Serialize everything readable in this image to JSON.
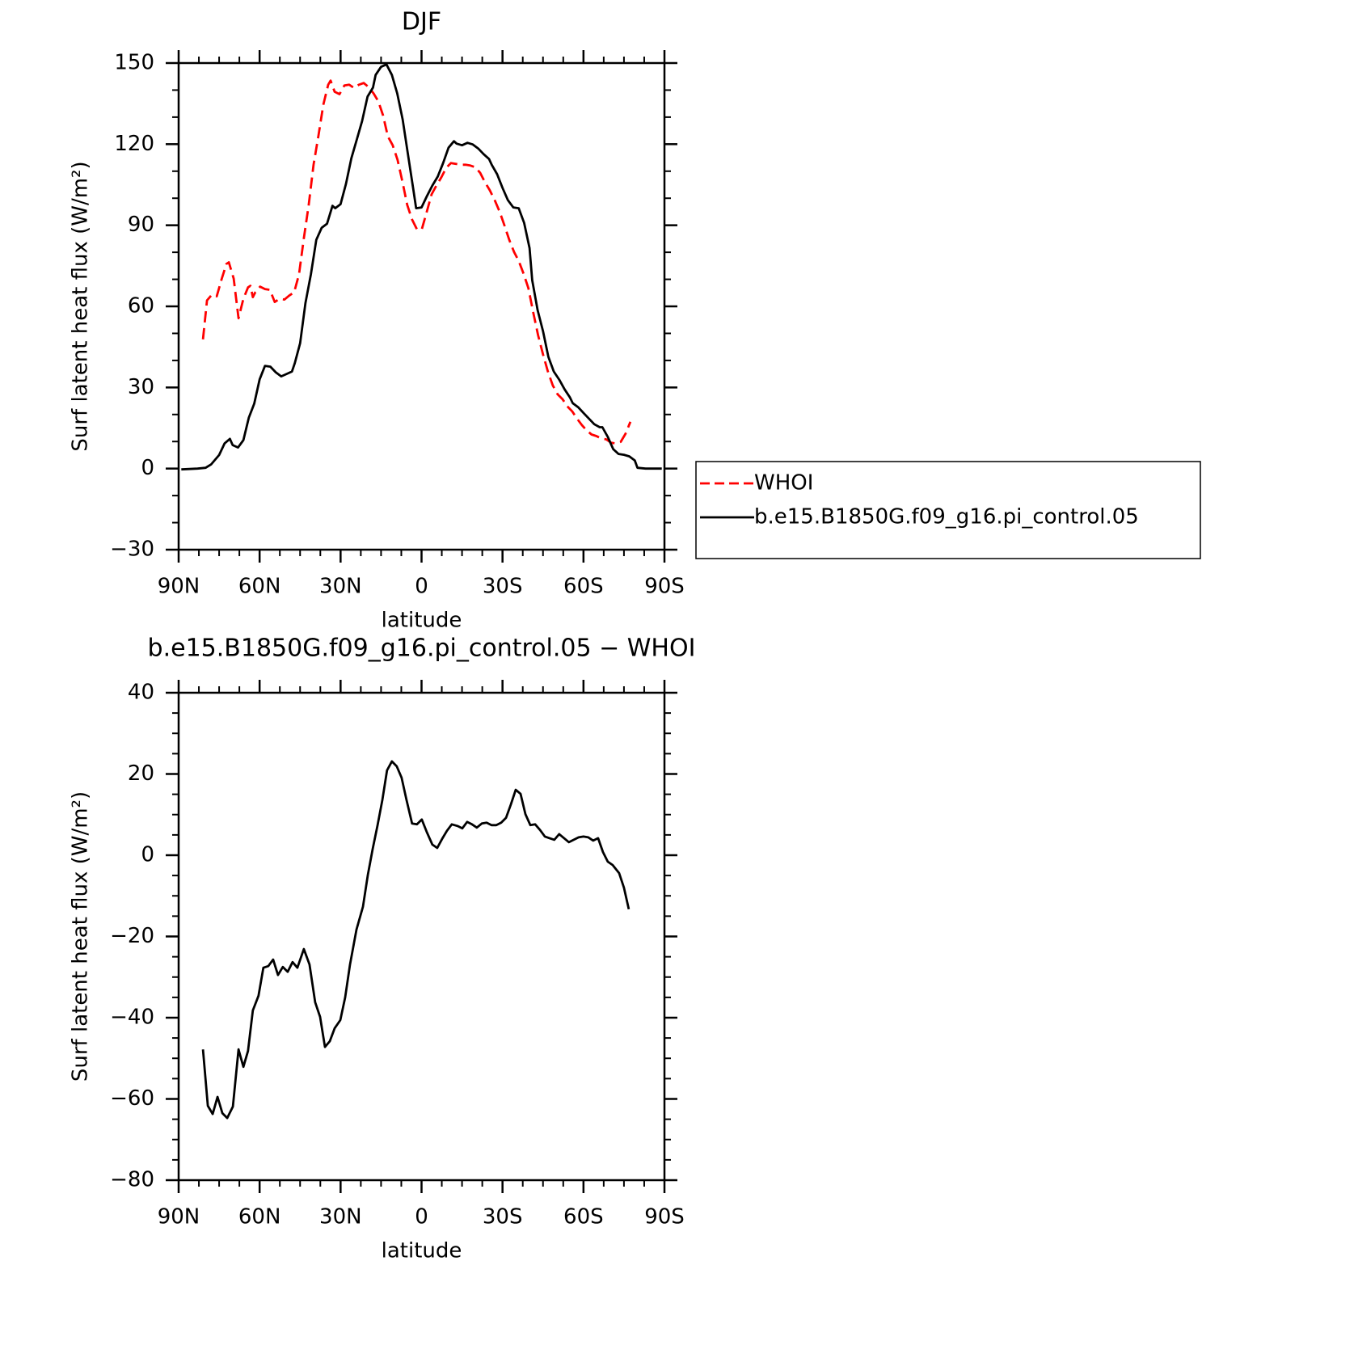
{
  "chart_data": [
    {
      "type": "line",
      "title": "DJF",
      "xlabel": "latitude",
      "ylabel": "Surf latent heat flux (W/m²)",
      "xlim": [
        90,
        -90
      ],
      "xticks": [
        {
          "value": 90,
          "label": "90N"
        },
        {
          "value": 60,
          "label": "60N"
        },
        {
          "value": 30,
          "label": "30N"
        },
        0,
        {
          "value": -30,
          "label": "30S"
        },
        {
          "value": -60,
          "label": "60S"
        },
        {
          "value": -90,
          "label": "90S"
        }
      ],
      "xminorticks": [
        82.5,
        75,
        67.5,
        52.5,
        45,
        37.5,
        22.5,
        15,
        7.5,
        -7.5,
        -15,
        -22.5,
        -37.5,
        -45,
        -52.5,
        -67.5,
        -75,
        -82.5
      ],
      "ylim": [
        -30,
        150
      ],
      "yticks": [
        {
          "value": -30,
          "label": "−30"
        },
        0,
        30,
        60,
        90,
        120,
        150
      ],
      "yminorticks": [
        -20,
        -10,
        10,
        20,
        40,
        50,
        70,
        80,
        100,
        110,
        130,
        140
      ],
      "legend": "right",
      "series": [
        {
          "name": "WHOI",
          "color": "#ff0000",
          "line_style": "dashed",
          "x": [
            81,
            79.5,
            77.7,
            75.9,
            74.1,
            72.3,
            71.4,
            69.6,
            67.8,
            66,
            64.3,
            63.4,
            62.5,
            61.6,
            59.8,
            58,
            56.2,
            54.4,
            52.6,
            50.8,
            49,
            47.2,
            45.4,
            43.6,
            41.8,
            40,
            38.2,
            36.4,
            34.6,
            33.7,
            32.2,
            30.4,
            28.6,
            26.8,
            25,
            23.2,
            21.4,
            19.6,
            17.8,
            16,
            14.3,
            12.5,
            10.7,
            8.9,
            7.1,
            5.3,
            3.5,
            1.7,
            -0.1,
            -1.9,
            -3.7,
            -5.5,
            -7.3,
            -9.1,
            -10.9,
            -12.7,
            -14.5,
            -16.3,
            -18.1,
            -19.9,
            -21.7,
            -23.5,
            -25.3,
            -27.1,
            -28.9,
            -30.7,
            -32.5,
            -34.3,
            -36.1,
            -37.8,
            -39.6,
            -41.4,
            -43.2,
            -45,
            -46.8,
            -48.6,
            -50.4,
            -52.2,
            -54,
            -55.8,
            -57.6,
            -59.4,
            -61.2,
            -63,
            -64.8,
            -66.6,
            -68.4,
            -70.2,
            -72,
            -73.8,
            -75.6,
            -77.4
          ],
          "values": [
            47.8,
            62.2,
            64.3,
            63.7,
            70,
            75.7,
            76.3,
            70.3,
            55.6,
            62.8,
            67,
            67.6,
            63.4,
            65.2,
            67.3,
            66.4,
            66.1,
            61.6,
            62.8,
            62.5,
            64,
            65.2,
            71.8,
            85.2,
            97.5,
            112.4,
            123.2,
            134.6,
            142,
            143.5,
            139.4,
            138.5,
            141.7,
            142,
            140.8,
            142,
            142.6,
            141.1,
            138.8,
            135.8,
            130.7,
            122.9,
            119.6,
            114.2,
            106.2,
            97.5,
            92.1,
            88.5,
            88.5,
            94.8,
            101.4,
            104.7,
            107.7,
            111.2,
            113,
            112.7,
            112.4,
            112.4,
            112.1,
            111.5,
            109.4,
            105.9,
            102.9,
            99.3,
            95.1,
            90,
            84.6,
            80.1,
            76.6,
            72.1,
            66.7,
            57.7,
            49.3,
            42.2,
            35.9,
            30.8,
            27.5,
            25.7,
            23,
            21.2,
            18.5,
            16.1,
            14.1,
            12.6,
            12,
            11.1,
            10.8,
            9.6,
            9.3,
            9.9,
            12.9,
            17.3
          ]
        },
        {
          "name": "b.e15.B1850G.f09_g16.pi_control.05",
          "color": "#000000",
          "line_style": "solid",
          "x": [
            89,
            83,
            80,
            78,
            75,
            73,
            71,
            70,
            68,
            66,
            64,
            62,
            60,
            58,
            56,
            54,
            52,
            50,
            48,
            47,
            45,
            43,
            41,
            39,
            37,
            35,
            33,
            32,
            30,
            28,
            26,
            24,
            22,
            20,
            18,
            17,
            15,
            13,
            11,
            9,
            7,
            5,
            3,
            2,
            0,
            -2,
            -4,
            -6,
            -8,
            -10,
            -12,
            -13,
            -15,
            -17,
            -19,
            -21,
            -23,
            -25,
            -26,
            -28,
            -30,
            -32,
            -34,
            -36,
            -38,
            -40,
            -41,
            -43,
            -45,
            -47,
            -49,
            -51,
            -53,
            -55,
            -56,
            -58,
            -60,
            -62,
            -64,
            -66,
            -67,
            -69,
            -71,
            -73,
            -75,
            -77,
            -79,
            -80,
            -83,
            -89
          ],
          "values": [
            -0.3,
            0,
            0.3,
            1.5,
            5,
            9.3,
            11,
            8.7,
            7.8,
            10.5,
            18.8,
            24,
            33,
            38,
            37.7,
            35.6,
            34.1,
            35,
            35.9,
            38.9,
            46.4,
            61.3,
            71.8,
            84.6,
            89.1,
            90.6,
            97.2,
            96.3,
            97.8,
            105.3,
            114.8,
            121.7,
            128.6,
            137.6,
            140.9,
            145.6,
            148.6,
            149.5,
            145.6,
            138.8,
            129.2,
            116,
            102.9,
            96.3,
            96.6,
            100.8,
            104.7,
            108,
            113,
            118.7,
            121.1,
            120.2,
            119.6,
            120.5,
            119.9,
            118.4,
            116.3,
            114.5,
            112.4,
            108.9,
            103.8,
            99.3,
            96.6,
            96.3,
            90.9,
            81.6,
            69.7,
            58.6,
            50.8,
            41.3,
            35.9,
            32.9,
            29.3,
            26.3,
            24.2,
            22.7,
            20.6,
            18.5,
            16.4,
            15.3,
            15.3,
            11.7,
            7.2,
            5.4,
            5.1,
            4.5,
            3,
            0.3,
            0,
            0
          ]
        }
      ]
    },
    {
      "type": "line",
      "title": "b.e15.B1850G.f09_g16.pi_control.05 − WHOI",
      "xlabel": "latitude",
      "ylabel": "Surf latent heat flux (W/m²)",
      "xlim": [
        90,
        -90
      ],
      "xticks": [
        {
          "value": 90,
          "label": "90N"
        },
        {
          "value": 60,
          "label": "60N"
        },
        {
          "value": 30,
          "label": "30N"
        },
        0,
        {
          "value": -30,
          "label": "30S"
        },
        {
          "value": -60,
          "label": "60S"
        },
        {
          "value": -90,
          "label": "90S"
        }
      ],
      "xminorticks": [
        82.5,
        75,
        67.5,
        52.5,
        45,
        37.5,
        22.5,
        15,
        7.5,
        -7.5,
        -15,
        -22.5,
        -37.5,
        -45,
        -52.5,
        -67.5,
        -75,
        -82.5
      ],
      "ylim": [
        -80,
        40
      ],
      "yticks": [
        {
          "value": -80,
          "label": "−80"
        },
        {
          "value": -60,
          "label": "−60"
        },
        {
          "value": -40,
          "label": "−40"
        },
        {
          "value": -20,
          "label": "−20"
        },
        0,
        20,
        40
      ],
      "yminorticks": [
        -75,
        -70,
        -65,
        -55,
        -50,
        -45,
        -35,
        -30,
        -25,
        -15,
        -10,
        -5,
        5,
        10,
        15,
        25,
        30,
        35
      ],
      "series": [
        {
          "color": "#000000",
          "line_style": "solid",
          "x": [
            81,
            79.2,
            77.4,
            75.6,
            73.8,
            72,
            69.9,
            67.8,
            66,
            64.3,
            62.5,
            60.4,
            58.6,
            56.8,
            55,
            53.2,
            51.4,
            49.6,
            47.8,
            46,
            43.6,
            41.5,
            39.4,
            37.6,
            35.8,
            34,
            32.2,
            30.1,
            28.3,
            26.5,
            24.1,
            21.7,
            19.9,
            18.1,
            16.3,
            14.5,
            12.8,
            11,
            9.2,
            7.4,
            5.6,
            3.5,
            1.7,
            -0.1,
            -1.9,
            -4,
            -5.8,
            -7.6,
            -9.4,
            -11.2,
            -13.3,
            -15.1,
            -16.9,
            -18.7,
            -20.5,
            -22.3,
            -24.1,
            -25.9,
            -27.7,
            -29.5,
            -31.3,
            -33.1,
            -34.9,
            -36.7,
            -38.5,
            -40.3,
            -42.1,
            -43.9,
            -45.7,
            -47.4,
            -49.2,
            -51,
            -52.8,
            -54.6,
            -56.4,
            -58.2,
            -60,
            -61.8,
            -63.6,
            -65.4,
            -67.2,
            -69,
            -70.8,
            -73.2,
            -75,
            -76.8
          ],
          "values": [
            -47.8,
            -61.7,
            -63.7,
            -59.5,
            -63.5,
            -64.7,
            -61.9,
            -47.8,
            -52.1,
            -48.2,
            -38.2,
            -34.6,
            -27.7,
            -27.3,
            -25.7,
            -29.5,
            -27.5,
            -28.7,
            -26.3,
            -27.7,
            -23.1,
            -26.9,
            -36.2,
            -39.8,
            -47.2,
            -45.8,
            -42.6,
            -40.6,
            -35,
            -26.9,
            -18.3,
            -12.7,
            -4.8,
            1.6,
            7.4,
            13.7,
            20.9,
            23.1,
            21.9,
            19.1,
            13.7,
            7.8,
            7.6,
            8.8,
            5.8,
            2.6,
            1.8,
            4,
            6,
            7.6,
            7.2,
            6.6,
            8.2,
            7.6,
            6.8,
            7.8,
            8,
            7.4,
            7.4,
            8,
            9.2,
            12.5,
            16.1,
            15.1,
            10.1,
            7.4,
            7.6,
            6.2,
            4.6,
            4.2,
            3.8,
            5.2,
            4.2,
            3.2,
            3.8,
            4.4,
            4.6,
            4.4,
            3.6,
            4.2,
            0.8,
            -1.6,
            -2.4,
            -4.4,
            -8,
            -13.3
          ]
        }
      ]
    }
  ]
}
